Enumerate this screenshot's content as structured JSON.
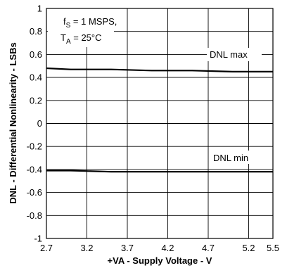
{
  "chart_data": {
    "type": "line",
    "xlabel": "+VA - Supply Voltage - V",
    "ylabel": "DNL - Differential Nonlinearity - LSBs",
    "xlim": [
      2.7,
      5.5
    ],
    "ylim": [
      -1,
      1
    ],
    "x_ticks": [
      "2.7",
      "3.2",
      "3.7",
      "4.2",
      "4.7",
      "5.2",
      "5.5"
    ],
    "y_ticks": [
      "-1",
      "-0.8",
      "-0.6",
      "-0.4",
      "-0.2",
      "0",
      "0.2",
      "0.4",
      "0.6",
      "0.8",
      "1"
    ],
    "grid": true,
    "conditions": {
      "fs_var": "f",
      "fs_sub": "S",
      "fs_rest": " = 1 MSPS,",
      "ta_var": "T",
      "ta_sub": "A",
      "ta_rest": " = 25°C"
    },
    "series": [
      {
        "name": "DNL max",
        "x": [
          2.7,
          3.0,
          3.5,
          4.0,
          4.5,
          5.0,
          5.3,
          5.5
        ],
        "values": [
          0.48,
          0.47,
          0.47,
          0.46,
          0.46,
          0.45,
          0.45,
          0.45
        ]
      },
      {
        "name": "DNL min",
        "x": [
          2.7,
          3.0,
          3.5,
          4.0,
          4.5,
          5.0,
          5.3,
          5.5
        ],
        "values": [
          -0.41,
          -0.41,
          -0.42,
          -0.42,
          -0.42,
          -0.42,
          -0.42,
          -0.42
        ]
      }
    ]
  }
}
